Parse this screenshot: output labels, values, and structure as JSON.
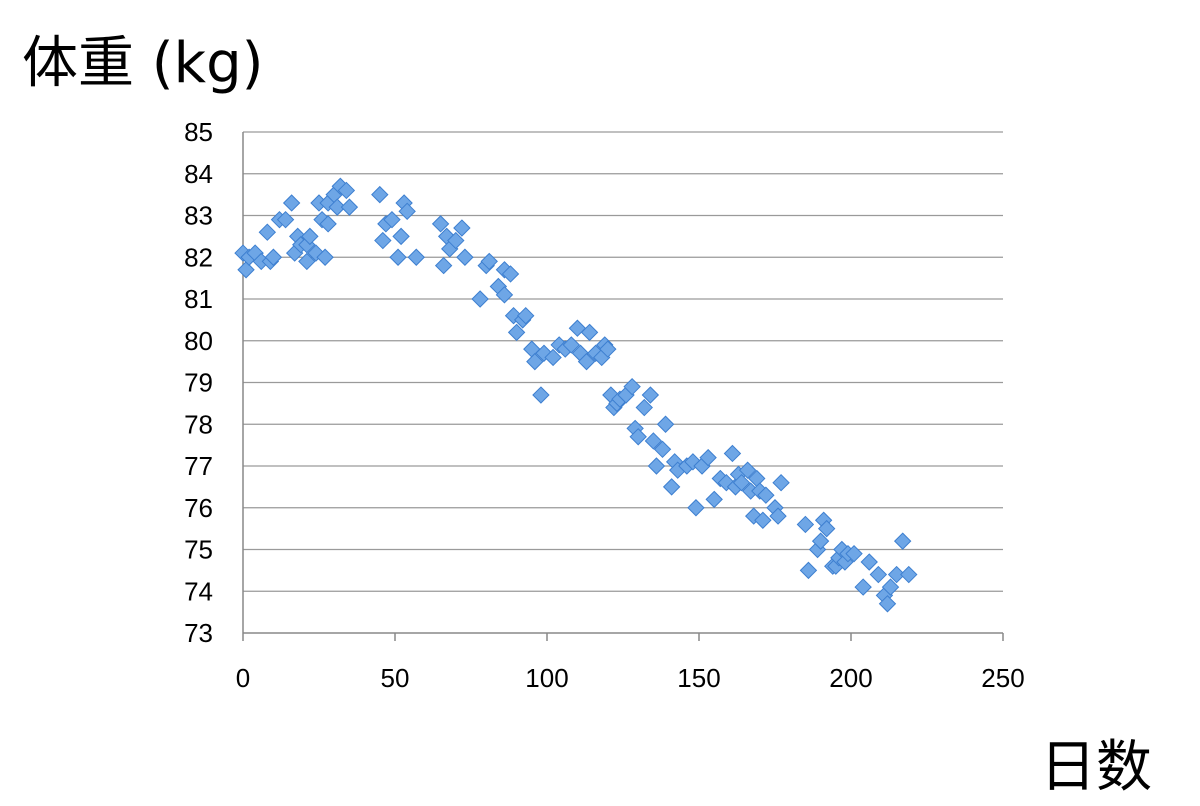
{
  "chart_data": {
    "type": "scatter",
    "ylabel": "体重 (kg)",
    "xlabel": "日数",
    "xlim": [
      0,
      250
    ],
    "ylim": [
      73,
      85
    ],
    "xticks": [
      "0",
      "50",
      "100",
      "150",
      "200",
      "250"
    ],
    "yticks": [
      "73",
      "74",
      "75",
      "76",
      "77",
      "78",
      "79",
      "80",
      "81",
      "82",
      "83",
      "84",
      "85"
    ],
    "grid": "horizontal",
    "marker_color": "#6ea6e6",
    "points": [
      [
        0,
        82.1
      ],
      [
        1,
        81.7
      ],
      [
        2,
        82.0
      ],
      [
        4,
        82.1
      ],
      [
        6,
        81.9
      ],
      [
        8,
        82.6
      ],
      [
        9,
        81.9
      ],
      [
        10,
        82.0
      ],
      [
        12,
        82.9
      ],
      [
        14,
        82.9
      ],
      [
        16,
        83.3
      ],
      [
        17,
        82.1
      ],
      [
        18,
        82.5
      ],
      [
        19,
        82.3
      ],
      [
        21,
        82.3
      ],
      [
        21,
        81.9
      ],
      [
        22,
        82.5
      ],
      [
        24,
        82.1
      ],
      [
        25,
        83.3
      ],
      [
        26,
        82.9
      ],
      [
        27,
        82.0
      ],
      [
        28,
        83.3
      ],
      [
        28,
        82.8
      ],
      [
        30,
        83.5
      ],
      [
        31,
        83.2
      ],
      [
        32,
        83.7
      ],
      [
        34,
        83.6
      ],
      [
        35,
        83.2
      ],
      [
        45,
        83.5
      ],
      [
        46,
        82.4
      ],
      [
        47,
        82.8
      ],
      [
        49,
        82.9
      ],
      [
        51,
        82.0
      ],
      [
        52,
        82.5
      ],
      [
        53,
        83.3
      ],
      [
        54,
        83.1
      ],
      [
        57,
        82.0
      ],
      [
        65,
        82.8
      ],
      [
        66,
        81.8
      ],
      [
        67,
        82.5
      ],
      [
        68,
        82.2
      ],
      [
        70,
        82.4
      ],
      [
        72,
        82.7
      ],
      [
        73,
        82.0
      ],
      [
        78,
        81.0
      ],
      [
        80,
        81.8
      ],
      [
        81,
        81.9
      ],
      [
        84,
        81.3
      ],
      [
        86,
        81.7
      ],
      [
        86,
        81.1
      ],
      [
        88,
        81.6
      ],
      [
        89,
        80.6
      ],
      [
        90,
        80.2
      ],
      [
        92,
        80.5
      ],
      [
        93,
        80.6
      ],
      [
        95,
        79.8
      ],
      [
        96,
        79.5
      ],
      [
        98,
        78.7
      ],
      [
        99,
        79.7
      ],
      [
        102,
        79.6
      ],
      [
        104,
        79.9
      ],
      [
        106,
        79.8
      ],
      [
        108,
        79.9
      ],
      [
        110,
        80.3
      ],
      [
        111,
        79.7
      ],
      [
        113,
        79.5
      ],
      [
        114,
        80.2
      ],
      [
        116,
        79.7
      ],
      [
        118,
        79.6
      ],
      [
        119,
        79.9
      ],
      [
        120,
        79.8
      ],
      [
        121,
        78.7
      ],
      [
        122,
        78.4
      ],
      [
        123,
        78.5
      ],
      [
        124,
        78.6
      ],
      [
        126,
        78.7
      ],
      [
        128,
        78.9
      ],
      [
        129,
        77.9
      ],
      [
        130,
        77.7
      ],
      [
        132,
        78.4
      ],
      [
        134,
        78.7
      ],
      [
        135,
        77.6
      ],
      [
        136,
        77.0
      ],
      [
        138,
        77.4
      ],
      [
        139,
        78.0
      ],
      [
        141,
        76.5
      ],
      [
        142,
        77.1
      ],
      [
        143,
        76.9
      ],
      [
        146,
        77.0
      ],
      [
        148,
        77.1
      ],
      [
        149,
        76.0
      ],
      [
        151,
        77.0
      ],
      [
        153,
        77.2
      ],
      [
        155,
        76.2
      ],
      [
        157,
        76.7
      ],
      [
        159,
        76.6
      ],
      [
        161,
        77.3
      ],
      [
        162,
        76.5
      ],
      [
        163,
        76.8
      ],
      [
        164,
        76.6
      ],
      [
        166,
        76.9
      ],
      [
        167,
        76.4
      ],
      [
        168,
        75.8
      ],
      [
        169,
        76.7
      ],
      [
        170,
        76.4
      ],
      [
        171,
        75.7
      ],
      [
        172,
        76.3
      ],
      [
        175,
        76.0
      ],
      [
        176,
        75.8
      ],
      [
        177,
        76.6
      ],
      [
        185,
        75.6
      ],
      [
        186,
        74.5
      ],
      [
        189,
        75.0
      ],
      [
        190,
        75.2
      ],
      [
        191,
        75.7
      ],
      [
        192,
        75.5
      ],
      [
        194,
        74.6
      ],
      [
        195,
        74.6
      ],
      [
        196,
        74.8
      ],
      [
        197,
        75.0
      ],
      [
        198,
        74.7
      ],
      [
        199,
        74.9
      ],
      [
        201,
        74.9
      ],
      [
        204,
        74.1
      ],
      [
        206,
        74.7
      ],
      [
        209,
        74.4
      ],
      [
        211,
        73.9
      ],
      [
        212,
        73.7
      ],
      [
        213,
        74.1
      ],
      [
        215,
        74.4
      ],
      [
        217,
        75.2
      ],
      [
        219,
        74.4
      ]
    ]
  }
}
